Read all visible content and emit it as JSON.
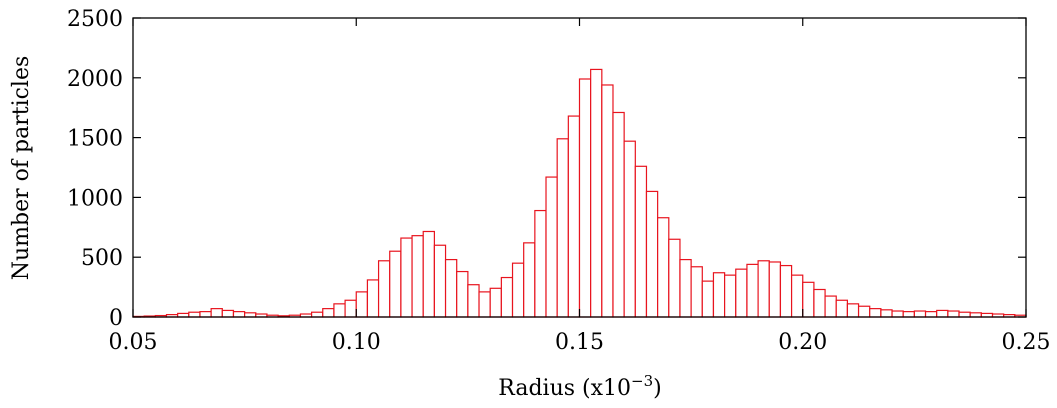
{
  "chart_data": {
    "type": "bar",
    "xlabel": "Radius (x10",
    "xlabel_exponent": "−3",
    "xlabel_suffix": ")",
    "ylabel": "Number of particles",
    "xlim": [
      0.05,
      0.25
    ],
    "ylim": [
      0,
      2500
    ],
    "xticks": [
      "0.05",
      "0.10",
      "0.15",
      "0.20",
      "0.25"
    ],
    "xtick_values": [
      0.05,
      0.1,
      0.15,
      0.2,
      0.25
    ],
    "yticks": [
      "0",
      "500",
      "1000",
      "1500",
      "2000",
      "2500"
    ],
    "ytick_values": [
      0,
      500,
      1000,
      1500,
      2000,
      2500
    ],
    "grid": false,
    "bar_color": "#e8141e",
    "bin_width": 0.0025,
    "bin_starts": [
      0.05,
      0.0525,
      0.055,
      0.0575,
      0.06,
      0.0625,
      0.065,
      0.0675,
      0.07,
      0.0725,
      0.075,
      0.0775,
      0.08,
      0.0825,
      0.085,
      0.0875,
      0.09,
      0.0925,
      0.095,
      0.0975,
      0.1,
      0.1025,
      0.105,
      0.1075,
      0.11,
      0.1125,
      0.115,
      0.1175,
      0.12,
      0.1225,
      0.125,
      0.1275,
      0.13,
      0.1325,
      0.135,
      0.1375,
      0.14,
      0.1425,
      0.145,
      0.1475,
      0.15,
      0.1525,
      0.155,
      0.1575,
      0.16,
      0.1625,
      0.165,
      0.1675,
      0.17,
      0.1725,
      0.175,
      0.1775,
      0.18,
      0.1825,
      0.185,
      0.1875,
      0.19,
      0.1925,
      0.195,
      0.1975,
      0.2,
      0.2025,
      0.205,
      0.2075,
      0.21,
      0.2125,
      0.215,
      0.2175,
      0.22,
      0.2225,
      0.225,
      0.2275,
      0.23,
      0.2325,
      0.235,
      0.2375,
      0.24,
      0.2425,
      0.245,
      0.2475
    ],
    "values": [
      5,
      8,
      12,
      20,
      30,
      40,
      45,
      70,
      55,
      45,
      35,
      25,
      15,
      10,
      15,
      25,
      40,
      70,
      110,
      140,
      210,
      310,
      470,
      550,
      660,
      680,
      715,
      600,
      480,
      380,
      270,
      210,
      240,
      330,
      450,
      620,
      890,
      1170,
      1490,
      1680,
      1990,
      2070,
      1940,
      1710,
      1470,
      1260,
      1050,
      830,
      650,
      480,
      420,
      300,
      370,
      350,
      400,
      440,
      470,
      460,
      430,
      350,
      290,
      230,
      175,
      140,
      110,
      90,
      70,
      60,
      50,
      45,
      50,
      45,
      55,
      50,
      40,
      35,
      30,
      25,
      20,
      15
    ]
  }
}
